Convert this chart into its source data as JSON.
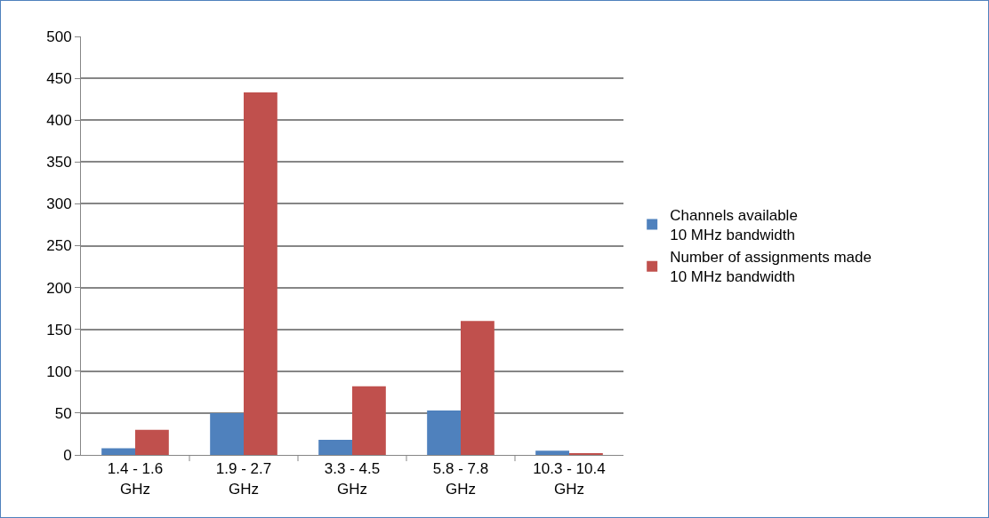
{
  "chart_data": {
    "type": "bar",
    "categories": [
      "1.4 - 1.6 GHz",
      "1.9 - 2.7 GHz",
      "3.3 - 4.5 GHz",
      "5.8 - 7.8 GHz",
      "10.3 - 10.4 GHz"
    ],
    "series": [
      {
        "name": "Channels available\n10 MHz bandwidth",
        "color": "#4f81bd",
        "values": [
          8,
          50,
          18,
          53,
          5
        ]
      },
      {
        "name": "Number of assignments made\n10 MHz bandwidth",
        "color": "#c0504d",
        "values": [
          30,
          433,
          82,
          160,
          2
        ]
      }
    ],
    "ylim": [
      0,
      500
    ],
    "yticks": [
      0,
      50,
      100,
      150,
      200,
      250,
      300,
      350,
      400,
      450,
      500
    ],
    "grid": "y",
    "legend": "right"
  }
}
